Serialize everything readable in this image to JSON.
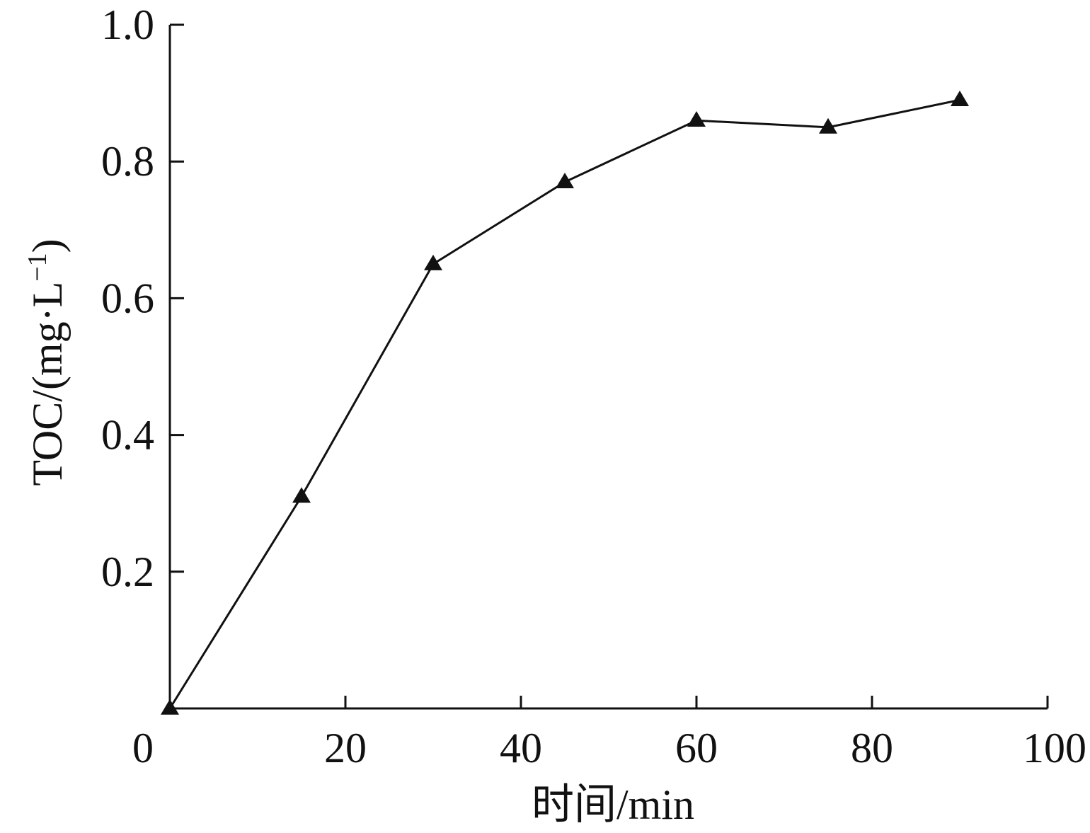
{
  "chart_data": {
    "type": "line",
    "title": "",
    "xlabel": "时间/min",
    "ylabel_main": "TOC/(mg·L",
    "ylabel_sup": "−1",
    "ylabel_close": ")",
    "xlim": [
      0,
      100
    ],
    "ylim": [
      0,
      1.0
    ],
    "x_ticks": [
      0,
      20,
      40,
      60,
      80,
      100
    ],
    "x_tick_labels": [
      "0",
      "20",
      "40",
      "60",
      "80",
      "100"
    ],
    "y_ticks": [
      0.2,
      0.4,
      0.6,
      0.8,
      1.0
    ],
    "y_tick_labels": [
      "0.2",
      "0.4",
      "0.6",
      "0.8",
      "1.0"
    ],
    "grid": false,
    "series": [
      {
        "marker": "triangle",
        "color": "#111111",
        "x": [
          0,
          15,
          30,
          45,
          60,
          75,
          90
        ],
        "y": [
          0.0,
          0.31,
          0.65,
          0.77,
          0.86,
          0.85,
          0.89
        ]
      }
    ]
  }
}
